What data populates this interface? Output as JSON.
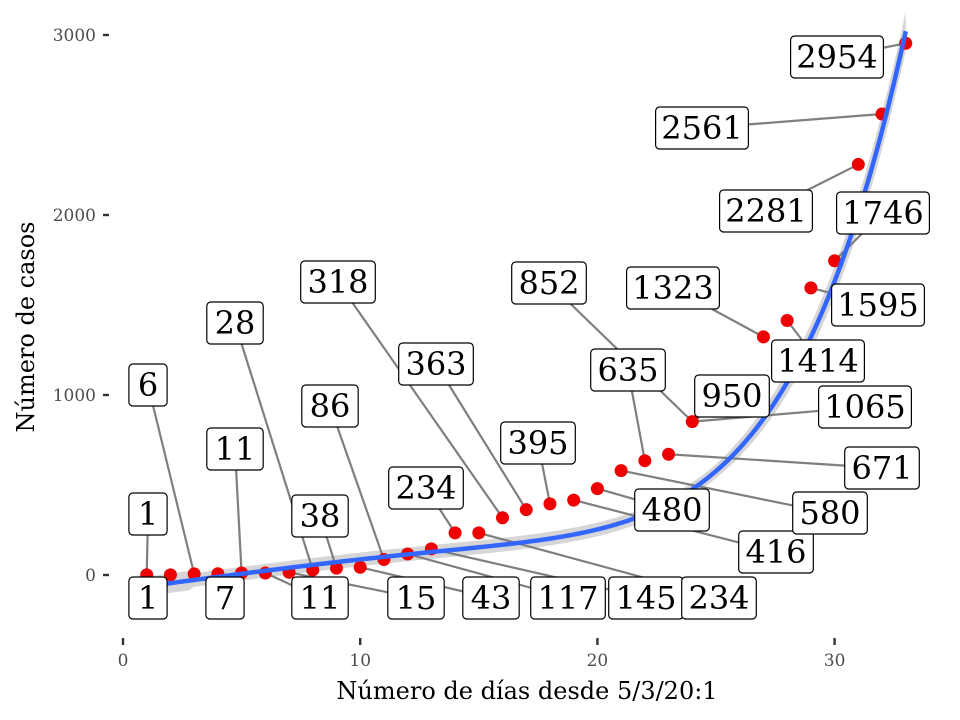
{
  "chart_data": {
    "type": "scatter",
    "xlabel": "Número de días desde 5/3/20:1",
    "ylabel": "Número de casos",
    "xlim": [
      0,
      34
    ],
    "ylim": [
      -310,
      3100
    ],
    "x_ticks": [
      0,
      10,
      20,
      30
    ],
    "y_ticks": [
      0,
      1000,
      2000,
      3000
    ],
    "grid": false,
    "legend": "none",
    "point_color": "#ee0000",
    "smooth_color": "#3366ff",
    "band_color": "#c8c8c8",
    "points": [
      {
        "x": 1,
        "y": 1
      },
      {
        "x": 2,
        "y": 1
      },
      {
        "x": 3,
        "y": 6
      },
      {
        "x": 4,
        "y": 7
      },
      {
        "x": 5,
        "y": 11
      },
      {
        "x": 6,
        "y": 11
      },
      {
        "x": 7,
        "y": 15
      },
      {
        "x": 8,
        "y": 28
      },
      {
        "x": 9,
        "y": 38
      },
      {
        "x": 10,
        "y": 43
      },
      {
        "x": 11,
        "y": 86
      },
      {
        "x": 12,
        "y": 117
      },
      {
        "x": 13,
        "y": 145
      },
      {
        "x": 14,
        "y": 234
      },
      {
        "x": 15,
        "y": 234
      },
      {
        "x": 16,
        "y": 318
      },
      {
        "x": 17,
        "y": 363
      },
      {
        "x": 18,
        "y": 395
      },
      {
        "x": 19,
        "y": 416
      },
      {
        "x": 20,
        "y": 480
      },
      {
        "x": 21,
        "y": 580
      },
      {
        "x": 22,
        "y": 635
      },
      {
        "x": 23,
        "y": 671
      },
      {
        "x": 24,
        "y": 852
      },
      {
        "x": 27,
        "y": 1323
      },
      {
        "x": 28,
        "y": 1414
      },
      {
        "x": 29,
        "y": 1595
      },
      {
        "x": 30,
        "y": 1746
      },
      {
        "x": 31,
        "y": 2281
      },
      {
        "x": 32,
        "y": 2561
      },
      {
        "x": 33,
        "y": 2954
      }
    ],
    "labels": [
      {
        "text": "1",
        "x": 1,
        "y": 1
      },
      {
        "text": "1",
        "x": 1,
        "y": 1
      },
      {
        "text": "6",
        "x": 3,
        "y": 6
      },
      {
        "text": "7",
        "x": 4,
        "y": 7
      },
      {
        "text": "11",
        "x": 5,
        "y": 11
      },
      {
        "text": "11",
        "x": 6,
        "y": 11
      },
      {
        "text": "15",
        "x": 7,
        "y": 15
      },
      {
        "text": "28",
        "x": 8,
        "y": 28
      },
      {
        "text": "38",
        "x": 9,
        "y": 38
      },
      {
        "text": "43",
        "x": 10,
        "y": 43
      },
      {
        "text": "86",
        "x": 11,
        "y": 86
      },
      {
        "text": "117",
        "x": 12,
        "y": 117
      },
      {
        "text": "145",
        "x": 13,
        "y": 145
      },
      {
        "text": "234",
        "x": 14,
        "y": 234
      },
      {
        "text": "234",
        "x": 15,
        "y": 234
      },
      {
        "text": "318",
        "x": 16,
        "y": 318
      },
      {
        "text": "363",
        "x": 17,
        "y": 363
      },
      {
        "text": "395",
        "x": 18,
        "y": 395
      },
      {
        "text": "416",
        "x": 19,
        "y": 416
      },
      {
        "text": "480",
        "x": 20,
        "y": 480
      },
      {
        "text": "580",
        "x": 21,
        "y": 580
      },
      {
        "text": "635",
        "x": 22,
        "y": 635
      },
      {
        "text": "671",
        "x": 23,
        "y": 671
      },
      {
        "text": "852",
        "x": 24,
        "y": 852
      },
      {
        "text": "950",
        "x": 24,
        "y": 852
      },
      {
        "text": "1065",
        "x": 24,
        "y": 852
      },
      {
        "text": "1323",
        "x": 27,
        "y": 1323
      },
      {
        "text": "1414",
        "x": 28,
        "y": 1414
      },
      {
        "text": "1595",
        "x": 29,
        "y": 1595
      },
      {
        "text": "1746",
        "x": 30,
        "y": 1746
      },
      {
        "text": "2281",
        "x": 31,
        "y": 2281
      },
      {
        "text": "2561",
        "x": 32,
        "y": 2561
      },
      {
        "text": "2954",
        "x": 33,
        "y": 2954
      }
    ]
  }
}
